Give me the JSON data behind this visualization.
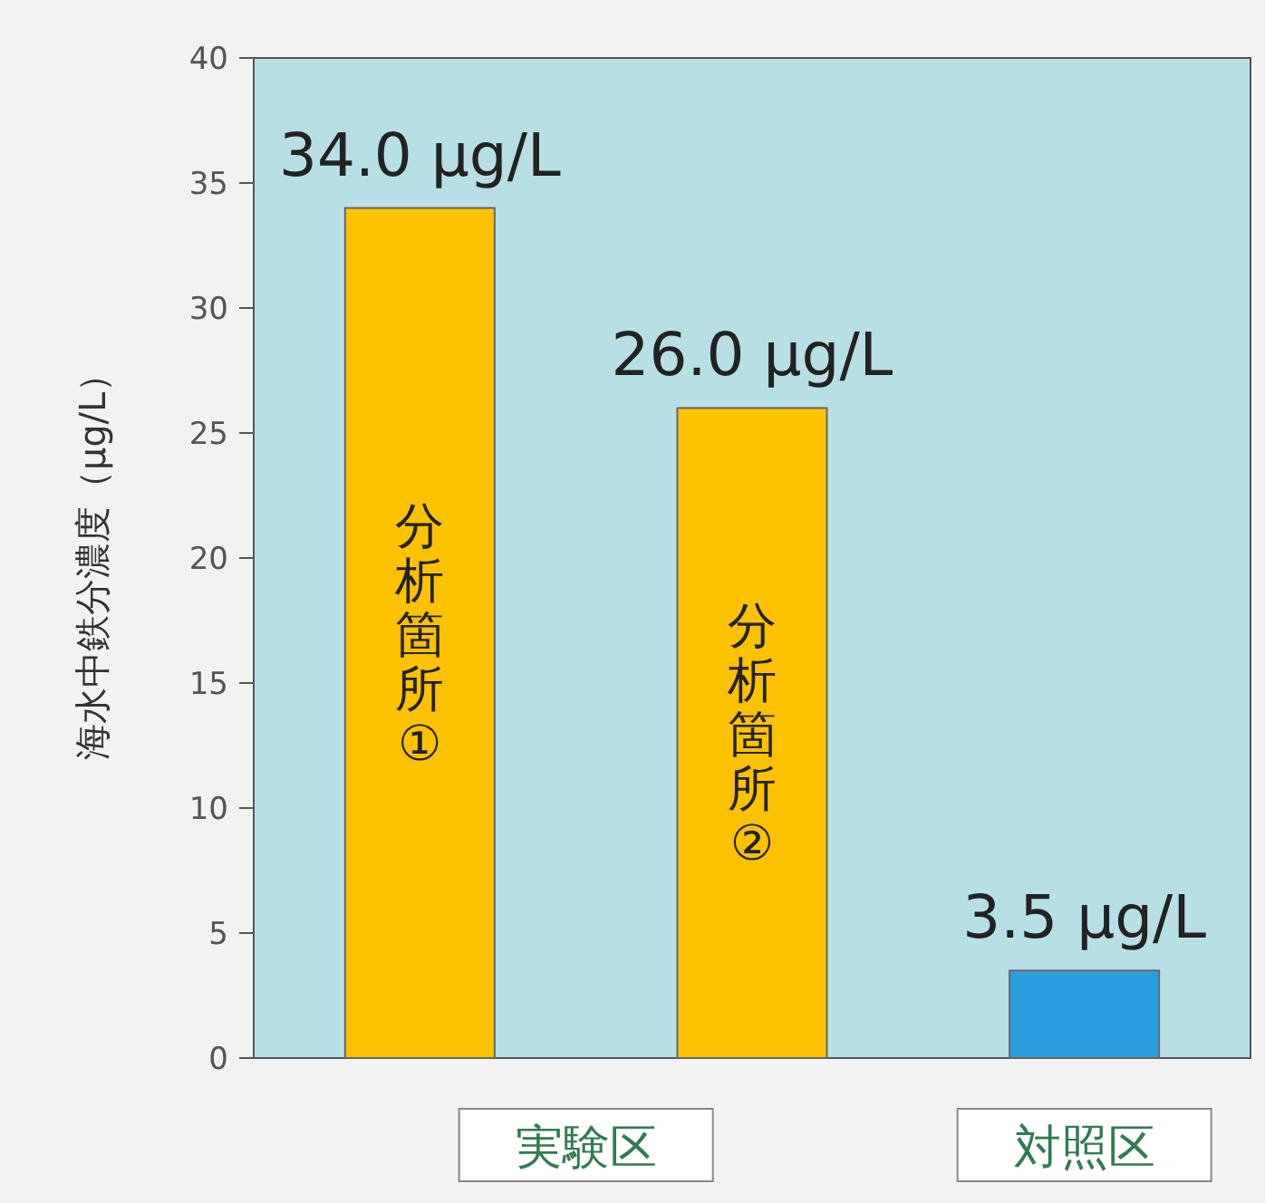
{
  "chart_data": {
    "type": "bar",
    "ylabel": "海水中鉄分濃度（μg/L）",
    "categories": [
      "分析箇所①",
      "分析箇所②",
      null
    ],
    "values": [
      34.0,
      26.0,
      3.5
    ],
    "colors": [
      "#fcc200",
      "#fcc200",
      "#2b9ee0"
    ],
    "value_labels": [
      "34.0 μg/L",
      "26.0 μg/L",
      "3.5 μg/L"
    ],
    "ylim": [
      0,
      40
    ],
    "yticks": [
      0,
      5,
      10,
      15,
      20,
      25,
      30,
      35,
      40
    ],
    "grid": false,
    "annotations": [
      "実験区",
      "対照区"
    ]
  }
}
